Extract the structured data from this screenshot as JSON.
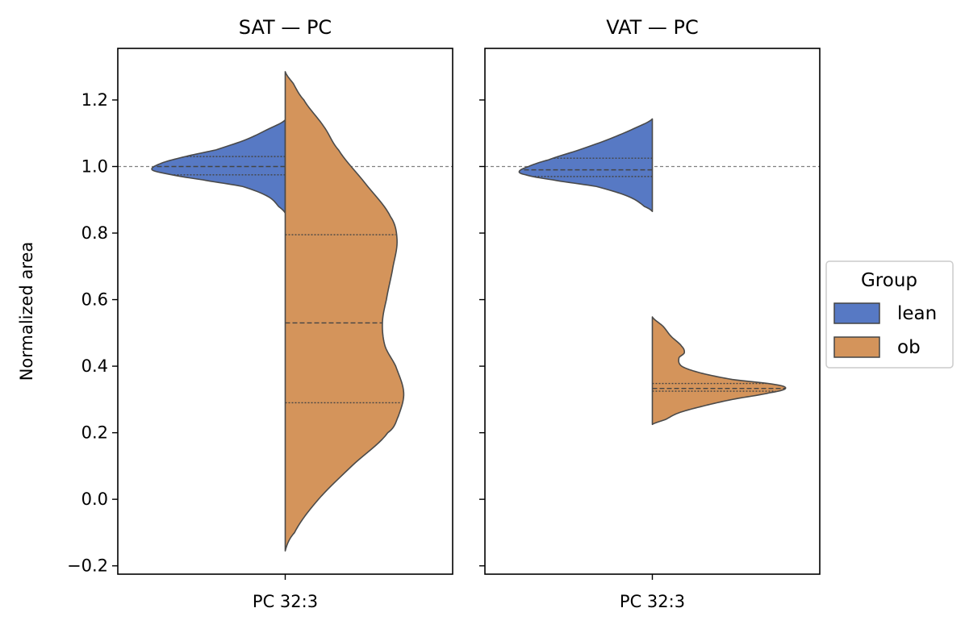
{
  "chart_data": {
    "type": "violin",
    "ylabel": "Normalized area",
    "ylim": [
      -0.225,
      1.355
    ],
    "yticks": [
      -0.2,
      0.0,
      0.2,
      0.4,
      0.6,
      0.8,
      1.0,
      1.2
    ],
    "ytick_labels": [
      "−0.2",
      "0.0",
      "0.2",
      "0.4",
      "0.6",
      "0.8",
      "1.0",
      "1.2"
    ],
    "reference_line": 1.0,
    "legend": {
      "title": "Group",
      "placement": "right",
      "entries": [
        {
          "name": "lean",
          "color": "#5779c4"
        },
        {
          "name": "ob",
          "color": "#d4945b"
        }
      ]
    },
    "panels": [
      {
        "title": "SAT — PC",
        "category": "PC 32:3",
        "series": [
          {
            "name": "lean",
            "side": "left",
            "color": "#5779c4",
            "y_min": 0.86,
            "y_max": 1.14,
            "quartiles": [
              0.975,
              1.0,
              1.03
            ],
            "profile": [
              [
                0.86,
                0.0
              ],
              [
                0.88,
                0.05
              ],
              [
                0.91,
                0.13
              ],
              [
                0.94,
                0.32
              ],
              [
                0.96,
                0.62
              ],
              [
                0.975,
                0.85
              ],
              [
                0.99,
                1.0
              ],
              [
                1.01,
                0.93
              ],
              [
                1.03,
                0.75
              ],
              [
                1.05,
                0.52
              ],
              [
                1.08,
                0.3
              ],
              [
                1.11,
                0.14
              ],
              [
                1.14,
                0.0
              ]
            ]
          },
          {
            "name": "ob",
            "side": "right",
            "color": "#d4945b",
            "y_min": -0.155,
            "y_max": 1.285,
            "quartiles": [
              0.29,
              0.53,
              0.795
            ],
            "profile": [
              [
                -0.155,
                0.0
              ],
              [
                -0.1,
                0.07
              ],
              [
                0.0,
                0.25
              ],
              [
                0.1,
                0.5
              ],
              [
                0.2,
                0.77
              ],
              [
                0.25,
                0.85
              ],
              [
                0.32,
                0.89
              ],
              [
                0.4,
                0.83
              ],
              [
                0.46,
                0.75
              ],
              [
                0.53,
                0.73
              ],
              [
                0.6,
                0.76
              ],
              [
                0.7,
                0.81
              ],
              [
                0.78,
                0.84
              ],
              [
                0.85,
                0.79
              ],
              [
                0.95,
                0.6
              ],
              [
                1.05,
                0.4
              ],
              [
                1.12,
                0.29
              ],
              [
                1.2,
                0.14
              ],
              [
                1.25,
                0.06
              ],
              [
                1.285,
                0.0
              ]
            ]
          }
        ]
      },
      {
        "title": "VAT — PC",
        "category": "PC 32:3",
        "series": [
          {
            "name": "lean",
            "side": "left",
            "color": "#5779c4",
            "y_min": 0.865,
            "y_max": 1.143,
            "quartiles": [
              0.97,
              0.99,
              1.025
            ],
            "profile": [
              [
                0.865,
                0.0
              ],
              [
                0.88,
                0.06
              ],
              [
                0.91,
                0.18
              ],
              [
                0.94,
                0.42
              ],
              [
                0.96,
                0.75
              ],
              [
                0.975,
                0.95
              ],
              [
                0.985,
                1.0
              ],
              [
                1.0,
                0.93
              ],
              [
                1.02,
                0.78
              ],
              [
                1.05,
                0.55
              ],
              [
                1.08,
                0.34
              ],
              [
                1.11,
                0.16
              ],
              [
                1.143,
                0.0
              ]
            ]
          },
          {
            "name": "ob",
            "side": "right",
            "color": "#d4945b",
            "y_min": 0.225,
            "y_max": 0.548,
            "quartiles": [
              0.325,
              0.333,
              0.348
            ],
            "profile": [
              [
                0.225,
                0.0
              ],
              [
                0.24,
                0.1
              ],
              [
                0.26,
                0.2
              ],
              [
                0.28,
                0.38
              ],
              [
                0.3,
                0.6
              ],
              [
                0.32,
                0.88
              ],
              [
                0.333,
                1.0
              ],
              [
                0.345,
                0.92
              ],
              [
                0.36,
                0.6
              ],
              [
                0.38,
                0.36
              ],
              [
                0.4,
                0.22
              ],
              [
                0.425,
                0.2
              ],
              [
                0.44,
                0.24
              ],
              [
                0.46,
                0.22
              ],
              [
                0.49,
                0.14
              ],
              [
                0.52,
                0.08
              ],
              [
                0.548,
                0.0
              ]
            ]
          }
        ]
      }
    ]
  }
}
